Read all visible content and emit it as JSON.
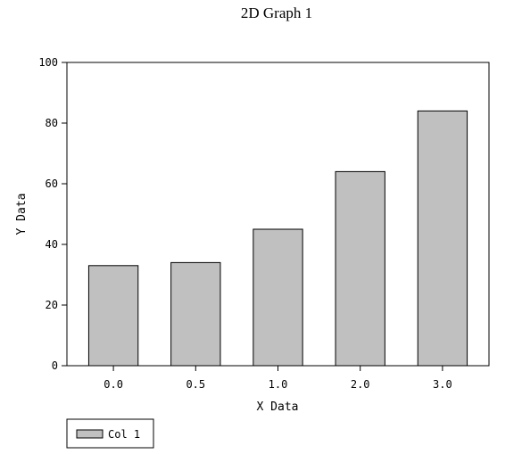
{
  "chart_data": {
    "type": "bar",
    "title": "2D Graph 1",
    "xlabel": "X Data",
    "ylabel": "Y Data",
    "categories": [
      "0.0",
      "0.5",
      "1.0",
      "2.0",
      "3.0"
    ],
    "series": [
      {
        "name": "Col 1",
        "values": [
          33,
          34,
          45,
          64,
          84
        ],
        "color": "#c0c0c0"
      }
    ],
    "ylim": [
      0,
      100
    ],
    "yticks": [
      "0",
      "20",
      "40",
      "60",
      "80",
      "100"
    ],
    "grid": false,
    "legend": "bottom-left"
  }
}
